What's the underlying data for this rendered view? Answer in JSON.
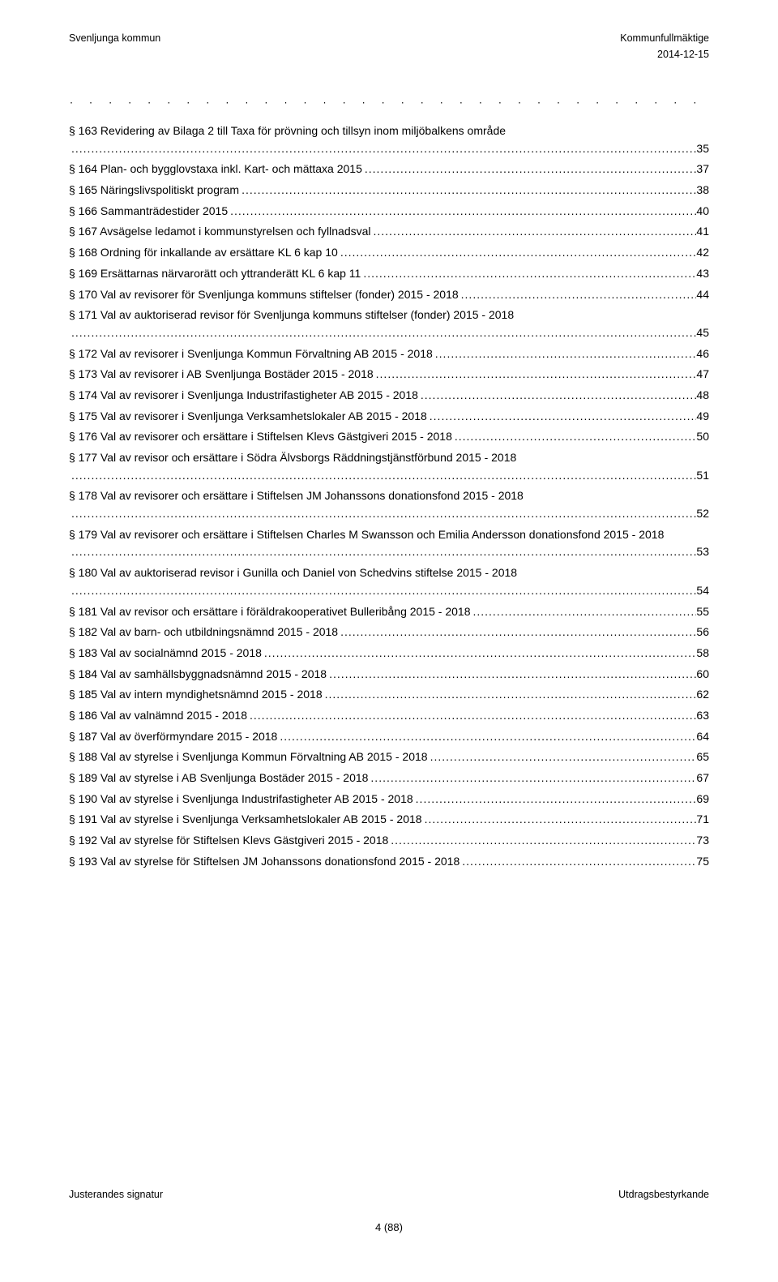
{
  "header": {
    "left": "Svenljunga kommun",
    "right": "Kommunfullmäktige",
    "date": "2014-12-15"
  },
  "decorativeDots": "· · · · · · · · · · · · · · · · · · · · · · · · · · · · · · · · · · · · · · · · · ·",
  "toc": [
    {
      "title": "§ 163 Revidering av Bilaga 2 till Taxa för prövning och tillsyn inom miljöbalkens område",
      "page": "35",
      "wrap": true
    },
    {
      "title": "§ 164 Plan- och bygglovstaxa inkl. Kart- och mättaxa 2015",
      "page": "37"
    },
    {
      "title": "§ 165 Näringslivspolitiskt program",
      "page": "38"
    },
    {
      "title": "§ 166 Sammanträdestider 2015",
      "page": "40"
    },
    {
      "title": "§ 167 Avsägelse ledamot i kommunstyrelsen och fyllnadsval",
      "page": "41"
    },
    {
      "title": "§ 168 Ordning för inkallande av ersättare KL 6 kap 10",
      "page": "42"
    },
    {
      "title": "§ 169 Ersättarnas närvarorätt och yttranderätt KL 6 kap 11",
      "page": "43"
    },
    {
      "title": "§ 170 Val av revisorer för Svenljunga kommuns stiftelser (fonder) 2015 - 2018",
      "page": "44"
    },
    {
      "title": "§ 171 Val av auktoriserad revisor för Svenljunga kommuns stiftelser (fonder) 2015 - 2018",
      "page": "45",
      "wrap": true
    },
    {
      "title": "§ 172 Val av revisorer i Svenljunga Kommun Förvaltning AB 2015 - 2018",
      "page": "46"
    },
    {
      "title": "§ 173 Val av revisorer i AB Svenljunga Bostäder 2015 - 2018",
      "page": "47"
    },
    {
      "title": "§ 174 Val av revisorer i Svenljunga Industrifastigheter AB 2015 - 2018",
      "page": "48"
    },
    {
      "title": "§ 175 Val av revisorer i Svenljunga Verksamhetslokaler AB 2015 - 2018",
      "page": "49"
    },
    {
      "title": "§ 176 Val av revisorer och ersättare i Stiftelsen Klevs Gästgiveri 2015 - 2018",
      "page": "50"
    },
    {
      "title": "§ 177 Val av revisor och ersättare i Södra Älvsborgs Räddningstjänstförbund 2015 - 2018",
      "page": "51",
      "wrap": true
    },
    {
      "title": "§ 178 Val av revisorer och ersättare i Stiftelsen JM Johanssons donationsfond 2015 - 2018",
      "page": "52",
      "wrap": true
    },
    {
      "title": "§ 179 Val av revisorer och ersättare i Stiftelsen Charles M Swansson och Emilia Andersson donationsfond 2015 - 2018",
      "page": "53",
      "wrap": true
    },
    {
      "title": "§ 180 Val av auktoriserad revisor i Gunilla och Daniel von Schedvins stiftelse 2015 - 2018",
      "page": "54",
      "wrap": true
    },
    {
      "title": "§ 181 Val av revisor och ersättare i föräldrakooperativet Bulleribång 2015 - 2018",
      "page": "55"
    },
    {
      "title": "§ 182 Val av barn- och utbildningsnämnd 2015 - 2018",
      "page": "56"
    },
    {
      "title": "§ 183 Val av socialnämnd 2015 - 2018",
      "page": "58"
    },
    {
      "title": "§ 184 Val av samhällsbyggnadsnämnd 2015 - 2018",
      "page": "60"
    },
    {
      "title": "§ 185 Val av intern myndighetsnämnd 2015 - 2018",
      "page": "62"
    },
    {
      "title": "§ 186 Val av valnämnd 2015 - 2018",
      "page": "63"
    },
    {
      "title": "§ 187 Val av överförmyndare 2015 - 2018",
      "page": "64"
    },
    {
      "title": "§ 188 Val av styrelse i Svenljunga Kommun Förvaltning AB 2015 - 2018",
      "page": "65"
    },
    {
      "title": "§ 189 Val av styrelse i AB Svenljunga Bostäder 2015 - 2018",
      "page": "67"
    },
    {
      "title": "§ 190 Val av styrelse i Svenljunga Industrifastigheter AB 2015 - 2018",
      "page": "69"
    },
    {
      "title": "§ 191 Val av styrelse i Svenljunga Verksamhetslokaler AB 2015 - 2018",
      "page": "71"
    },
    {
      "title": "§ 192 Val av styrelse för Stiftelsen Klevs Gästgiveri 2015 - 2018",
      "page": "73"
    },
    {
      "title": "§ 193 Val av styrelse för Stiftelsen JM Johanssons donationsfond 2015 - 2018",
      "page": "75"
    }
  ],
  "footer": {
    "left": "Justerandes signatur",
    "right": "Utdragsbestyrkande",
    "pageNum": "4 (88)"
  }
}
